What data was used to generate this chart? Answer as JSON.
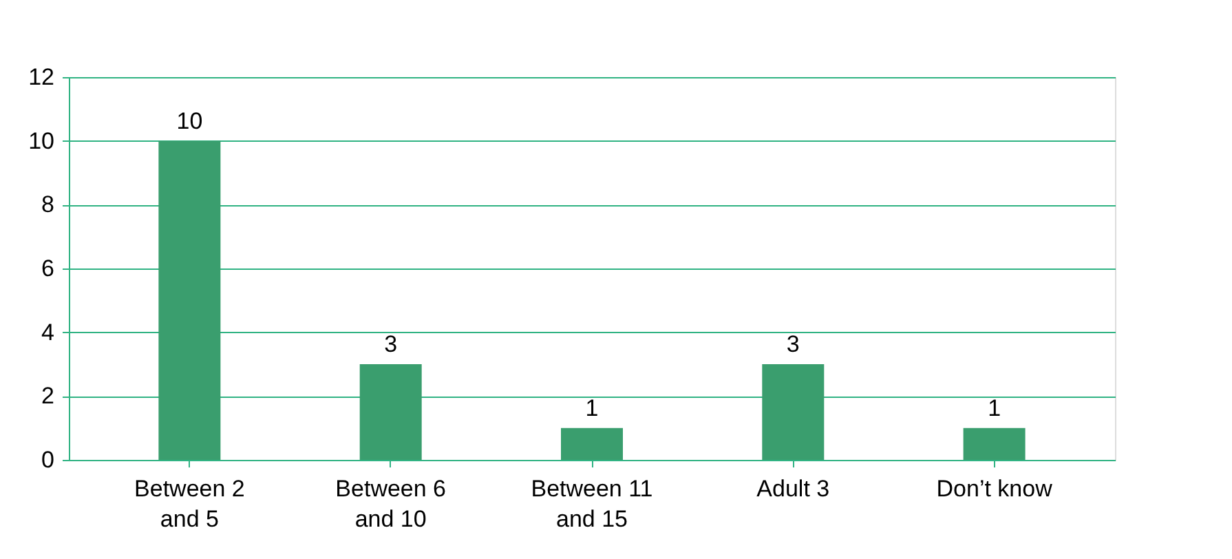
{
  "chart_data": {
    "type": "bar",
    "categories": [
      "Between 2\nand 5",
      "Between 6\nand 10",
      "Between 11\nand 15",
      "Adult 3",
      "Don’t know"
    ],
    "series": [
      {
        "color": "#3a9e6e",
        "values": [
          10,
          3,
          1,
          3,
          1
        ]
      }
    ],
    "ylim": [
      0,
      12
    ],
    "yticks": [
      0,
      2,
      4,
      6,
      8,
      10,
      12
    ],
    "grid": "y",
    "data_labels": true
  }
}
